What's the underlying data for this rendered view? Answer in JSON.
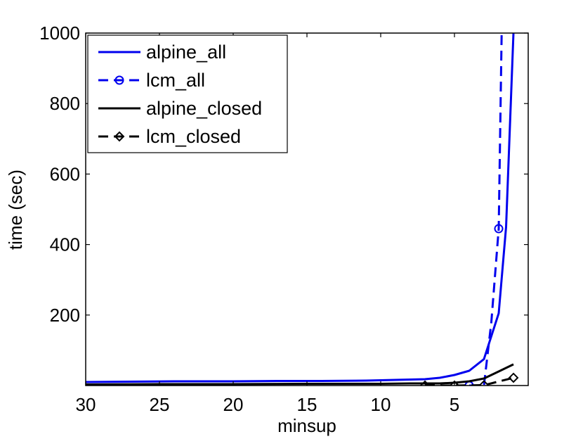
{
  "chart_data": {
    "type": "line",
    "title": "",
    "xlabel": "minsup",
    "ylabel": "time (sec)",
    "x_reversed": true,
    "xlim": [
      30,
      0
    ],
    "ylim": [
      0,
      1000
    ],
    "x_ticks": [
      30,
      25,
      20,
      15,
      10,
      5
    ],
    "x_tick_labels": [
      "30",
      "25",
      "20",
      "15",
      "10",
      "5"
    ],
    "y_ticks": [
      200,
      400,
      600,
      800,
      1000
    ],
    "y_tick_labels": [
      "200",
      "400",
      "600",
      "800",
      "1000"
    ],
    "grid": false,
    "legend_position": "top-left",
    "series": [
      {
        "name": "alpine_all",
        "color": "#0000ee",
        "dash": "solid",
        "marker": "none",
        "x": [
          30,
          27,
          24,
          20,
          17,
          14,
          11,
          9,
          7,
          6,
          5,
          4,
          3,
          2,
          1.5,
          1
        ],
        "y": [
          10,
          11,
          12,
          12,
          13,
          13,
          14,
          16,
          18,
          22,
          30,
          42,
          75,
          205,
          450,
          1000
        ]
      },
      {
        "name": "lcm_all",
        "color": "#0000ee",
        "dash": "dashed",
        "marker": "circle",
        "x": [
          4,
          3,
          2.5,
          2,
          1.8
        ],
        "y": [
          0,
          0,
          180,
          445,
          1000
        ],
        "marker_x": [
          4,
          2
        ],
        "marker_y": [
          0,
          445
        ]
      },
      {
        "name": "alpine_closed",
        "color": "#000000",
        "dash": "solid",
        "marker": "none",
        "x": [
          30,
          25,
          20,
          15,
          10,
          8,
          6,
          5,
          4,
          3,
          2,
          1
        ],
        "y": [
          3,
          4,
          4,
          5,
          5,
          6,
          6,
          8,
          12,
          20,
          40,
          60
        ]
      },
      {
        "name": "lcm_closed",
        "color": "#000000",
        "dash": "dashed",
        "marker": "diamond",
        "x": [
          7,
          5,
          3,
          1
        ],
        "y": [
          0,
          0,
          1,
          22
        ],
        "marker_x": [
          7,
          5,
          3,
          1
        ],
        "marker_y": [
          0,
          0,
          1,
          22
        ]
      }
    ]
  }
}
